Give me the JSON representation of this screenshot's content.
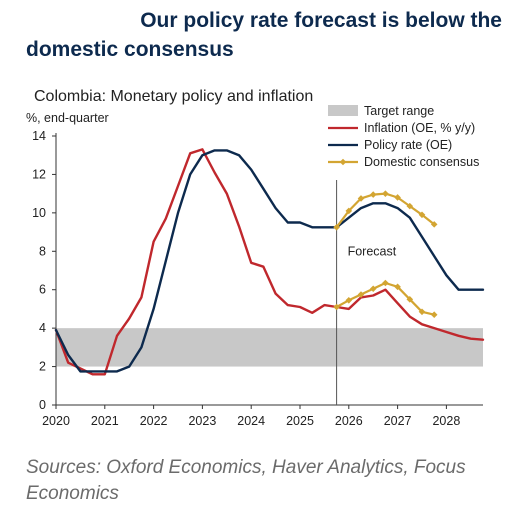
{
  "headline": {
    "line1": "Our policy rate forecast is below the",
    "line2": "domestic consensus"
  },
  "sources": "Sources: Oxford Economics, Haver Analytics, Focus Economics",
  "chart_data": {
    "type": "line",
    "title": "Colombia: Monetary policy and inflation",
    "ylabel": "%, end-quarter",
    "xlabel": "",
    "ylim": [
      0,
      14
    ],
    "yticks": [
      0,
      2,
      4,
      6,
      8,
      10,
      12,
      14
    ],
    "xlim": [
      2020.0,
      2028.75
    ],
    "xticks": [
      2020,
      2021,
      2022,
      2023,
      2024,
      2025,
      2026,
      2027,
      2028
    ],
    "grid": false,
    "legend_position": "top-right",
    "annotation": {
      "text": "Forecast",
      "x": 2025.75
    },
    "target_range": {
      "name": "Target range",
      "low": 2,
      "high": 4,
      "color": "#c8c8c8"
    },
    "series": [
      {
        "name": "Inflation (OE, % y/y)",
        "color": "#c0282d",
        "marker": false,
        "points": [
          [
            2020.0,
            3.9
          ],
          [
            2020.25,
            2.2
          ],
          [
            2020.5,
            1.9
          ],
          [
            2020.75,
            1.6
          ],
          [
            2021.0,
            1.6
          ],
          [
            2021.25,
            3.6
          ],
          [
            2021.5,
            4.5
          ],
          [
            2021.75,
            5.6
          ],
          [
            2022.0,
            8.5
          ],
          [
            2022.25,
            9.7
          ],
          [
            2022.5,
            11.4
          ],
          [
            2022.75,
            13.1
          ],
          [
            2023.0,
            13.3
          ],
          [
            2023.25,
            12.1
          ],
          [
            2023.5,
            11.0
          ],
          [
            2023.75,
            9.3
          ],
          [
            2024.0,
            7.4
          ],
          [
            2024.25,
            7.2
          ],
          [
            2024.5,
            5.8
          ],
          [
            2024.75,
            5.2
          ],
          [
            2025.0,
            5.1
          ],
          [
            2025.25,
            4.8
          ],
          [
            2025.5,
            5.2
          ],
          [
            2025.75,
            5.1
          ],
          [
            2026.0,
            5.0
          ],
          [
            2026.25,
            5.6
          ],
          [
            2026.5,
            5.7
          ],
          [
            2026.75,
            6.0
          ],
          [
            2027.0,
            5.3
          ],
          [
            2027.25,
            4.6
          ],
          [
            2027.5,
            4.2
          ],
          [
            2027.75,
            4.0
          ],
          [
            2028.0,
            3.8
          ],
          [
            2028.25,
            3.6
          ],
          [
            2028.5,
            3.45
          ],
          [
            2028.75,
            3.4
          ]
        ]
      },
      {
        "name": "Policy rate (OE)",
        "color": "#0d2a4e",
        "marker": false,
        "points": [
          [
            2020.0,
            3.9
          ],
          [
            2020.25,
            2.6
          ],
          [
            2020.5,
            1.75
          ],
          [
            2020.75,
            1.75
          ],
          [
            2021.0,
            1.75
          ],
          [
            2021.25,
            1.75
          ],
          [
            2021.5,
            2.0
          ],
          [
            2021.75,
            3.0
          ],
          [
            2022.0,
            5.0
          ],
          [
            2022.25,
            7.5
          ],
          [
            2022.5,
            10.0
          ],
          [
            2022.75,
            12.0
          ],
          [
            2023.0,
            13.0
          ],
          [
            2023.25,
            13.25
          ],
          [
            2023.5,
            13.25
          ],
          [
            2023.75,
            13.0
          ],
          [
            2024.0,
            12.25
          ],
          [
            2024.25,
            11.25
          ],
          [
            2024.5,
            10.25
          ],
          [
            2024.75,
            9.5
          ],
          [
            2025.0,
            9.5
          ],
          [
            2025.25,
            9.25
          ],
          [
            2025.5,
            9.25
          ],
          [
            2025.75,
            9.25
          ],
          [
            2026.0,
            9.75
          ],
          [
            2026.25,
            10.25
          ],
          [
            2026.5,
            10.5
          ],
          [
            2026.75,
            10.5
          ],
          [
            2027.0,
            10.25
          ],
          [
            2027.25,
            9.75
          ],
          [
            2027.5,
            8.75
          ],
          [
            2027.75,
            7.75
          ],
          [
            2028.0,
            6.75
          ],
          [
            2028.25,
            6.0
          ],
          [
            2028.5,
            6.0
          ],
          [
            2028.75,
            6.0
          ]
        ]
      },
      {
        "name": "Domestic consensus",
        "color": "#d3a532",
        "marker": true,
        "points": [
          [
            2025.75,
            9.25
          ],
          [
            2026.0,
            10.1
          ],
          [
            2026.25,
            10.75
          ],
          [
            2026.5,
            10.95
          ],
          [
            2026.75,
            11.0
          ],
          [
            2027.0,
            10.8
          ],
          [
            2027.25,
            10.35
          ],
          [
            2027.5,
            9.9
          ],
          [
            2027.75,
            9.4
          ]
        ]
      },
      {
        "name": "",
        "color": "#d3a532",
        "marker": true,
        "points": [
          [
            2025.75,
            5.1
          ],
          [
            2026.0,
            5.45
          ],
          [
            2026.25,
            5.75
          ],
          [
            2026.5,
            6.05
          ],
          [
            2026.75,
            6.35
          ],
          [
            2027.0,
            6.15
          ],
          [
            2027.25,
            5.5
          ],
          [
            2027.5,
            4.85
          ],
          [
            2027.75,
            4.7
          ]
        ]
      }
    ]
  }
}
